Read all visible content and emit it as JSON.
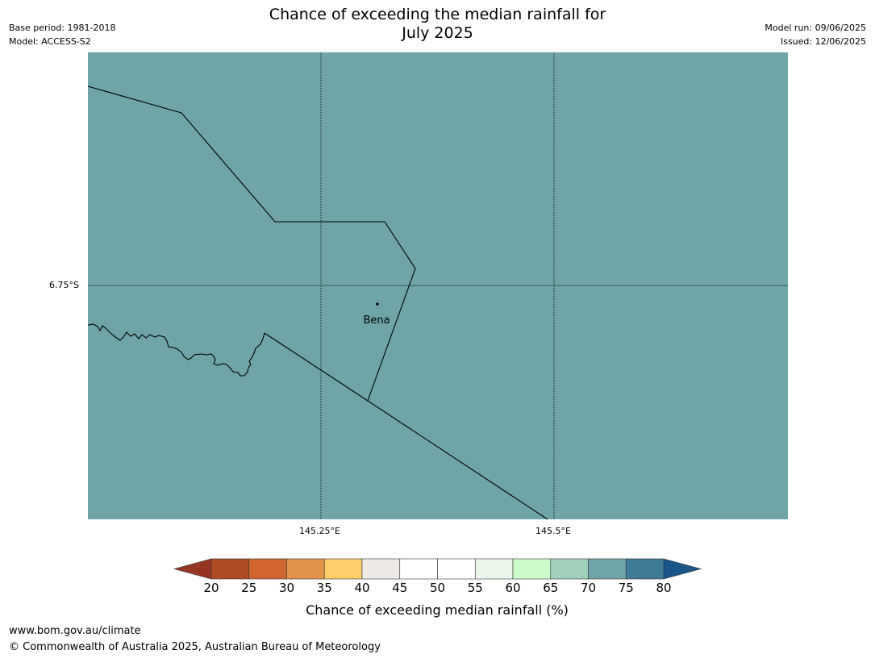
{
  "header": {
    "title_line1": "Chance of exceeding the median rainfall for",
    "title_line2": "July 2025",
    "base_period": "Base period: 1981-2018",
    "model": "Model: ACCESS-S2",
    "model_run": "Model run: 09/06/2025",
    "issued": "Issued: 12/06/2025"
  },
  "map": {
    "fill_color": "#70a4a8",
    "fill_category": "70-75",
    "lat_labels": [
      "6.75°S"
    ],
    "lon_labels": [
      "145.25°E",
      "145.5°E"
    ],
    "town": {
      "name": "Bena"
    }
  },
  "colorbar": {
    "label": "Chance of exceeding median rainfall (%)",
    "ticks": [
      "20",
      "25",
      "30",
      "35",
      "40",
      "45",
      "50",
      "55",
      "60",
      "65",
      "70",
      "75",
      "80"
    ],
    "under_color": "#973524",
    "over_color": "#1b5489",
    "colors": [
      "#b04a24",
      "#d0662e",
      "#e4944a",
      "#fdcd68",
      "#eeeae6",
      "#ffffff",
      "#ffffff",
      "#ebf6eb",
      "#cbfdcb",
      "#9fd0ba",
      "#70a4a8",
      "#407b96"
    ]
  },
  "footer": {
    "url": "www.bom.gov.au/climate",
    "copyright": "© Commonwealth of Australia 2025, Australian Bureau of Meteorology"
  }
}
